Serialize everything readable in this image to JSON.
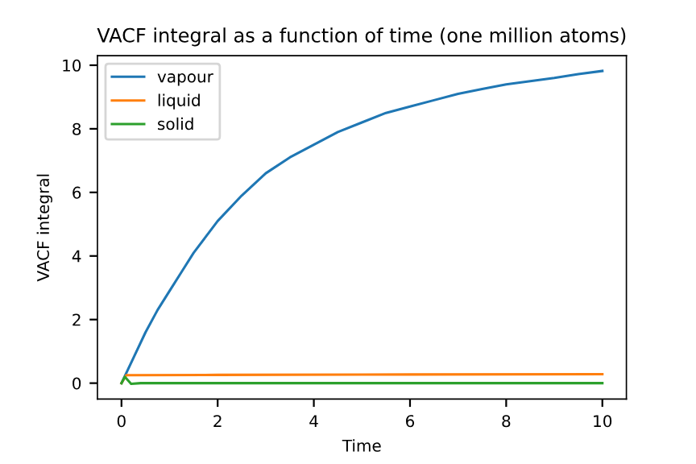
{
  "chart_data": {
    "type": "line",
    "title": "VACF integral as a function of time (one million atoms)",
    "xlabel": "Time",
    "ylabel": "VACF integral",
    "xlim": [
      -0.5,
      10.5
    ],
    "ylim": [
      -0.5,
      10.3
    ],
    "xticks": [
      0,
      2,
      4,
      6,
      8,
      10
    ],
    "yticks": [
      0,
      2,
      4,
      6,
      8,
      10
    ],
    "grid": false,
    "legend": "top left",
    "series": [
      {
        "name": "vapour",
        "color": "#1f77b4",
        "x": [
          0,
          0.25,
          0.5,
          0.75,
          1,
          1.25,
          1.5,
          1.75,
          2,
          2.5,
          3,
          3.5,
          4,
          4.5,
          5,
          5.5,
          6,
          6.5,
          7,
          7.5,
          8,
          8.5,
          9,
          9.5,
          10
        ],
        "values": [
          0,
          0.8,
          1.6,
          2.3,
          2.9,
          3.5,
          4.1,
          4.6,
          5.1,
          5.9,
          6.6,
          7.1,
          7.5,
          7.9,
          8.2,
          8.5,
          8.7,
          8.9,
          9.1,
          9.25,
          9.4,
          9.5,
          9.6,
          9.72,
          9.82
        ]
      },
      {
        "name": "liquid",
        "color": "#ff7f0e",
        "x": [
          0,
          0.1,
          2,
          5,
          10
        ],
        "values": [
          0,
          0.25,
          0.26,
          0.27,
          0.28
        ]
      },
      {
        "name": "solid",
        "color": "#2ca02c",
        "x": [
          0,
          0.07,
          0.2,
          0.4,
          10
        ],
        "values": [
          0,
          0.2,
          -0.02,
          0,
          0
        ]
      }
    ]
  }
}
